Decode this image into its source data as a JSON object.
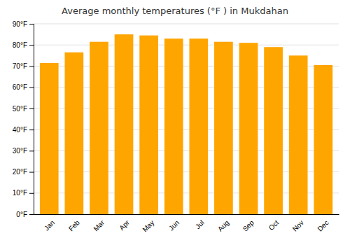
{
  "chart_data": {
    "type": "bar",
    "title": "Average monthly temperatures (°F ) in Mukdahan",
    "categories": [
      "Jan",
      "Feb",
      "Mar",
      "Apr",
      "May",
      "Jun",
      "Jul",
      "Aug",
      "Sep",
      "Oct",
      "Nov",
      "Dec"
    ],
    "values": [
      71.5,
      76.5,
      81.5,
      85.0,
      84.5,
      83.0,
      83.0,
      81.5,
      81.0,
      79.0,
      75.0,
      70.5
    ],
    "color": "#FFA500",
    "ylim": [
      0,
      90
    ],
    "yticks": [
      {
        "value": 0,
        "label": "0°F"
      },
      {
        "value": 10,
        "label": "10°F"
      },
      {
        "value": 20,
        "label": "20°F"
      },
      {
        "value": 30,
        "label": "30°F"
      },
      {
        "value": 40,
        "label": "40°F"
      },
      {
        "value": 50,
        "label": "50°F"
      },
      {
        "value": 60,
        "label": "60°F"
      },
      {
        "value": 70,
        "label": "70°F"
      },
      {
        "value": 80,
        "label": "80°F"
      },
      {
        "value": 90,
        "label": "90°F"
      }
    ],
    "grid": true
  }
}
